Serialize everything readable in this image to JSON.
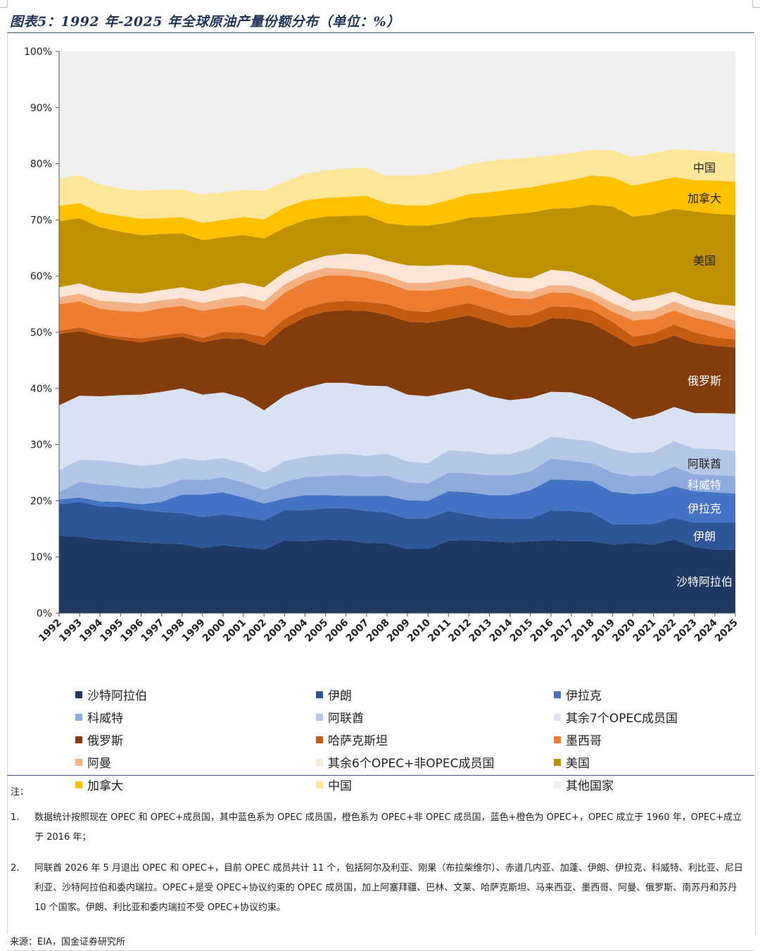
{
  "title": "图表5：1992 年-2025 年全球原油产量份额分布（单位：%）",
  "chart_data": {
    "type": "area",
    "stacked": true,
    "ylim": [
      0,
      100
    ],
    "y_ticks": [
      "0%",
      "10%",
      "20%",
      "30%",
      "40%",
      "50%",
      "60%",
      "70%",
      "80%",
      "90%",
      "100%"
    ],
    "x": [
      "1992",
      "1993",
      "1994",
      "1995",
      "1996",
      "1997",
      "1998",
      "1999",
      "2000",
      "2001",
      "2002",
      "2003",
      "2004",
      "2005",
      "2006",
      "2007",
      "2008",
      "2009",
      "2010",
      "2011",
      "2012",
      "2013",
      "2014",
      "2015",
      "2016",
      "2017",
      "2018",
      "2019",
      "2020",
      "2021",
      "2022",
      "2023",
      "2024",
      "2025"
    ],
    "series": [
      {
        "name": "沙特阿拉伯",
        "color": "#1f3864",
        "label": "沙特阿拉伯",
        "cum": [
          13.8,
          13.6,
          13.1,
          12.9,
          12.6,
          12.4,
          12.3,
          11.6,
          12.1,
          11.7,
          11.3,
          12.9,
          12.8,
          13.1,
          13.0,
          12.5,
          12.4,
          11.4,
          11.4,
          12.9,
          13.0,
          12.8,
          12.6,
          12.8,
          13.0,
          12.8,
          12.8,
          12.2,
          12.5,
          12.2,
          13.1,
          11.8,
          11.3,
          11.3
        ]
      },
      {
        "name": "伊朗",
        "color": "#2e5597",
        "label": "伊朗",
        "cum": [
          19.4,
          19.8,
          19.0,
          18.9,
          18.4,
          18.0,
          17.8,
          17.1,
          17.6,
          17.1,
          16.5,
          18.4,
          18.3,
          18.7,
          18.7,
          18.2,
          17.9,
          16.8,
          16.9,
          18.2,
          17.5,
          16.9,
          16.8,
          16.8,
          18.3,
          18.2,
          17.9,
          15.8,
          15.8,
          15.9,
          17.0,
          16.1,
          16.1,
          16.1
        ]
      },
      {
        "name": "伊拉克",
        "color": "#4472c4",
        "label": "伊拉克",
        "cum": [
          20.2,
          20.6,
          19.9,
          19.8,
          19.4,
          19.8,
          21.1,
          21.1,
          21.5,
          20.6,
          19.5,
          20.4,
          21.0,
          21.0,
          20.9,
          20.9,
          20.9,
          20.1,
          20.0,
          21.7,
          21.5,
          21.0,
          21.0,
          21.9,
          23.8,
          23.7,
          23.5,
          21.6,
          21.2,
          21.4,
          22.6,
          21.7,
          21.5,
          21.3
        ]
      },
      {
        "name": "科威特",
        "color": "#8faadc",
        "label": "科威特",
        "cum": [
          21.5,
          23.4,
          22.9,
          22.6,
          22.2,
          22.5,
          23.8,
          23.7,
          24.2,
          23.3,
          21.9,
          23.4,
          24.2,
          24.4,
          24.6,
          24.3,
          24.5,
          23.3,
          23.1,
          25.0,
          24.9,
          24.5,
          24.5,
          25.2,
          27.5,
          27.1,
          26.7,
          25.0,
          24.4,
          24.5,
          26.1,
          24.7,
          24.6,
          24.4
        ]
      },
      {
        "name": "阿联酋",
        "color": "#b4c7e7",
        "label": "阿联酋",
        "cum": [
          25.4,
          27.3,
          27.2,
          26.8,
          26.2,
          26.6,
          27.6,
          27.2,
          27.6,
          26.7,
          25.0,
          27.1,
          27.8,
          28.2,
          28.4,
          28.0,
          28.4,
          27.0,
          26.7,
          29.0,
          28.8,
          28.3,
          28.3,
          29.4,
          31.4,
          31.0,
          30.6,
          29.2,
          28.5,
          28.7,
          30.6,
          29.3,
          29.2,
          28.9
        ]
      },
      {
        "name": "其余7个OPEC成员国",
        "color": "#d9e2f3",
        "label": "",
        "cum": [
          37.0,
          38.7,
          38.6,
          38.8,
          38.9,
          39.4,
          40.0,
          38.9,
          39.3,
          38.3,
          36.1,
          38.7,
          40.1,
          41.0,
          41.0,
          40.5,
          40.4,
          38.9,
          38.6,
          39.3,
          40.0,
          38.6,
          37.9,
          38.3,
          39.4,
          39.3,
          38.4,
          36.6,
          34.5,
          35.2,
          36.7,
          35.6,
          35.6,
          35.5
        ]
      },
      {
        "name": "俄罗斯",
        "color": "#843c0c",
        "label": "俄罗斯",
        "cum": [
          49.7,
          50.2,
          49.3,
          48.7,
          48.2,
          48.8,
          49.2,
          48.2,
          48.9,
          48.8,
          47.6,
          50.8,
          52.7,
          53.7,
          53.9,
          53.8,
          53.1,
          51.9,
          51.7,
          52.3,
          53.0,
          51.9,
          50.8,
          51.0,
          52.5,
          52.4,
          51.6,
          49.6,
          47.5,
          48.1,
          49.4,
          48.1,
          47.6,
          47.3
        ]
      },
      {
        "name": "哈萨克斯坦",
        "color": "#c55a11",
        "label": "",
        "cum": [
          50.3,
          50.9,
          49.8,
          49.2,
          48.9,
          49.4,
          49.9,
          49.0,
          50.1,
          49.9,
          49.2,
          52.4,
          54.3,
          55.3,
          55.6,
          55.4,
          55.0,
          53.9,
          53.6,
          54.5,
          55.2,
          54.1,
          53.0,
          53.1,
          54.6,
          54.5,
          53.9,
          51.9,
          49.2,
          49.8,
          51.4,
          50.0,
          49.1,
          48.7
        ]
      },
      {
        "name": "墨西哥",
        "color": "#ed7d31",
        "label": "",
        "cum": [
          55.0,
          55.5,
          54.2,
          53.8,
          53.6,
          54.3,
          54.7,
          53.8,
          54.4,
          54.9,
          54.0,
          57.0,
          59.0,
          60.1,
          60.1,
          59.7,
          58.8,
          57.5,
          57.4,
          57.8,
          58.4,
          57.3,
          56.1,
          55.9,
          57.1,
          57.0,
          55.8,
          53.7,
          52.1,
          52.4,
          53.9,
          52.6,
          51.8,
          50.6
        ]
      },
      {
        "name": "阿曼",
        "color": "#f4b183",
        "label": "",
        "cum": [
          56.2,
          56.9,
          55.6,
          55.4,
          55.1,
          55.7,
          56.1,
          55.2,
          56.0,
          56.4,
          55.5,
          58.5,
          60.4,
          61.5,
          61.3,
          60.9,
          60.1,
          58.8,
          58.8,
          59.3,
          59.8,
          58.6,
          57.5,
          57.2,
          58.4,
          58.3,
          57.1,
          55.2,
          53.7,
          53.9,
          55.5,
          54.1,
          53.2,
          52.0
        ]
      },
      {
        "name": "其余6个OPEC+非OPEC成员国",
        "color": "#fbe5d6",
        "label": "",
        "cum": [
          58.0,
          58.7,
          57.5,
          57.1,
          56.9,
          57.5,
          58.0,
          57.3,
          58.3,
          58.8,
          58.0,
          60.7,
          62.5,
          63.6,
          64.0,
          63.8,
          62.7,
          61.9,
          61.8,
          62.0,
          61.9,
          60.8,
          59.8,
          59.6,
          61.1,
          60.8,
          59.5,
          57.5,
          55.6,
          56.3,
          57.2,
          55.8,
          55.0,
          54.7
        ]
      },
      {
        "name": "美国",
        "color": "#bf9000",
        "label": "美国",
        "cum": [
          69.8,
          70.3,
          68.7,
          67.9,
          67.3,
          67.5,
          67.6,
          66.4,
          66.9,
          67.3,
          66.7,
          68.6,
          70.0,
          70.6,
          70.7,
          70.8,
          69.4,
          69.0,
          69.0,
          69.5,
          70.4,
          70.6,
          71.0,
          71.3,
          72.0,
          72.1,
          72.7,
          72.4,
          70.6,
          71.0,
          72.0,
          71.5,
          71.1,
          70.9
        ]
      },
      {
        "name": "加拿大",
        "color": "#ffc000",
        "label": "加拿大",
        "cum": [
          72.5,
          73.0,
          71.3,
          70.7,
          70.2,
          70.3,
          70.5,
          69.5,
          70.0,
          70.5,
          70.1,
          72.2,
          73.5,
          73.9,
          74.1,
          74.3,
          72.9,
          72.6,
          72.6,
          73.5,
          74.6,
          74.9,
          75.4,
          75.8,
          76.5,
          77.1,
          77.9,
          77.6,
          76.1,
          76.8,
          77.6,
          77.1,
          77.0,
          76.8
        ]
      },
      {
        "name": "中国",
        "color": "#ffe699",
        "label": "中国",
        "cum": [
          77.3,
          78.0,
          76.3,
          75.6,
          75.2,
          75.4,
          75.4,
          74.5,
          74.9,
          75.4,
          75.2,
          76.8,
          78.2,
          78.8,
          79.2,
          79.3,
          77.9,
          77.9,
          78.1,
          78.9,
          79.9,
          80.5,
          80.9,
          81.1,
          81.5,
          81.9,
          82.5,
          82.4,
          81.2,
          81.9,
          82.6,
          82.4,
          82.2,
          81.8
        ]
      },
      {
        "name": "其他国家",
        "color": "#efefef",
        "label": "",
        "cum": [
          100,
          100,
          100,
          100,
          100,
          100,
          100,
          100,
          100,
          100,
          100,
          100,
          100,
          100,
          100,
          100,
          100,
          100,
          100,
          100,
          100,
          100,
          100,
          100,
          100,
          100,
          100,
          100,
          100,
          100,
          100,
          100,
          100,
          100
        ]
      }
    ]
  },
  "notes": {
    "head": "注：",
    "items": [
      {
        "num": "1.",
        "text": "数据统计按照现在 OPEC 和 OPEC+成员国，其中蓝色系为 OPEC 成员国，橙色系为 OPEC+非 OPEC 成员国，蓝色+橙色为 OPEC+，OPEC 成立于 1960 年，OPEC+成立于 2016 年；"
      },
      {
        "num": "2.",
        "text": "阿联酋 2026 年 5 月退出 OPEC 和 OPEC+，目前 OPEC 成员共计 11 个，包括阿尔及利亚、刚果（布拉柴维尔）、赤道几内亚、加蓬、伊朗、伊拉克、科威特、利比亚、尼日利亚、沙特阿拉伯和委内瑞拉。OPEC+是受 OPEC+协议约束的 OPEC 成员国，加上阿塞拜疆、巴林、文莱、哈萨克斯坦、马来西亚、墨西哥、阿曼、俄罗斯、南苏丹和苏丹 10 个国家。伊朗、利比亚和委内瑞拉不受 OPEC+协议约束。"
      }
    ]
  },
  "source": "来源：EIA，国金证券研究所"
}
